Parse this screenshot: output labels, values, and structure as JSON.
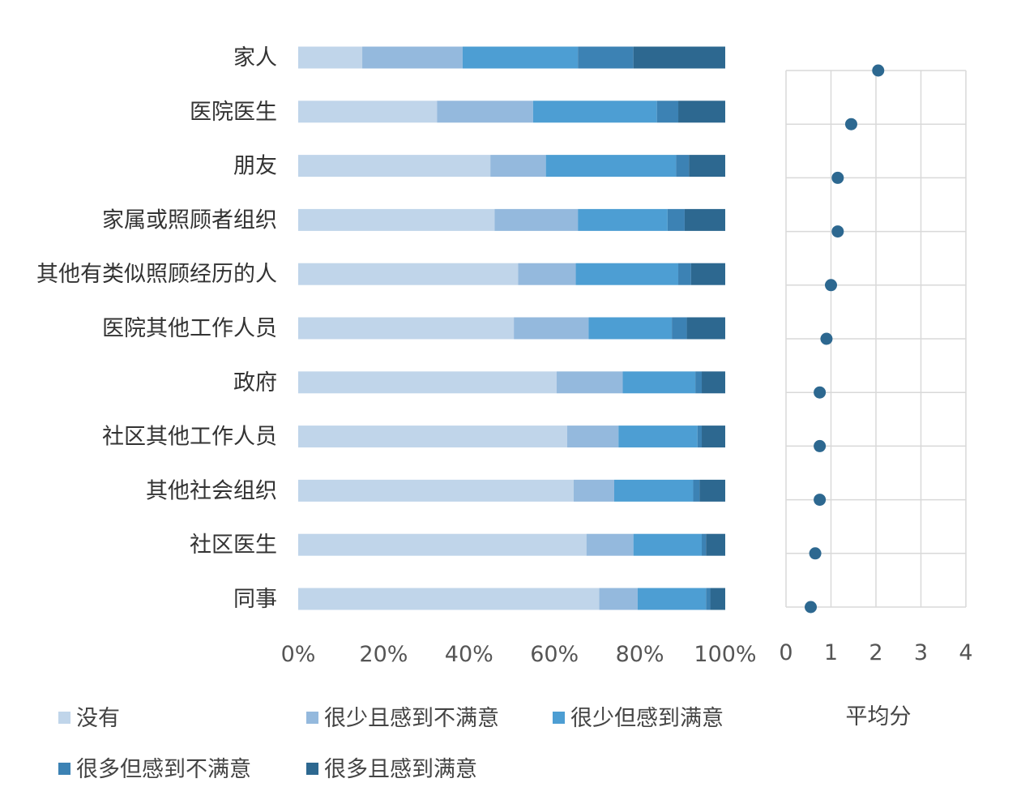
{
  "chart_data": [
    {
      "type": "bar",
      "orientation": "horizontal",
      "stacked": "percent",
      "categories": [
        "家人",
        "医院医生",
        "朋友",
        "家属或照顾者组织",
        "其他有类似照顾经历的人",
        "医院其他工作人员",
        "政府",
        "社区其他工作人员",
        "其他社会组织",
        "社区医生",
        "同事"
      ],
      "series": [
        {
          "name": "没有",
          "color": "#c0d5ea",
          "values": [
            15,
            32.5,
            45,
            46,
            51.5,
            50.5,
            60.5,
            63,
            64.5,
            67.5,
            70.5
          ]
        },
        {
          "name": "很少且感到不满意",
          "color": "#94b9dd",
          "values": [
            23.5,
            22.5,
            13,
            19.5,
            13.5,
            17.5,
            15.5,
            12,
            9.5,
            11,
            9
          ]
        },
        {
          "name": "很少但感到满意",
          "color": "#4d9ed3",
          "values": [
            27,
            29,
            30.5,
            21,
            24,
            19.5,
            17,
            18.5,
            18.5,
            16,
            16
          ]
        },
        {
          "name": "很多但感到不满意",
          "color": "#3c82b4",
          "values": [
            13,
            5,
            3,
            4,
            3,
            3.5,
            1.5,
            1,
            1.5,
            1,
            1
          ]
        },
        {
          "name": "很多且感到满意",
          "color": "#2d6890",
          "values": [
            21.5,
            11,
            8.5,
            9.5,
            8,
            9,
            5.5,
            5.5,
            6,
            4.5,
            3.5
          ]
        }
      ],
      "xticks": [
        "0%",
        "20%",
        "40%",
        "60%",
        "80%",
        "100%"
      ],
      "xlim": [
        0,
        100
      ],
      "grid": false,
      "legend": "bottom"
    },
    {
      "type": "scatter",
      "categories": [
        "家人",
        "医院医生",
        "朋友",
        "家属或照顾者组织",
        "其他有类似照顾经历的人",
        "医院其他工作人员",
        "政府",
        "社区其他工作人员",
        "其他社会组织",
        "社区医生",
        "同事"
      ],
      "values": [
        2.05,
        1.45,
        1.15,
        1.15,
        1.0,
        0.9,
        0.75,
        0.75,
        0.75,
        0.65,
        0.55
      ],
      "xticks": [
        "0",
        "1",
        "2",
        "3",
        "4"
      ],
      "xlim": [
        0,
        4
      ],
      "xlabel": "平均分",
      "grid": true,
      "color": "#2d6890"
    }
  ]
}
